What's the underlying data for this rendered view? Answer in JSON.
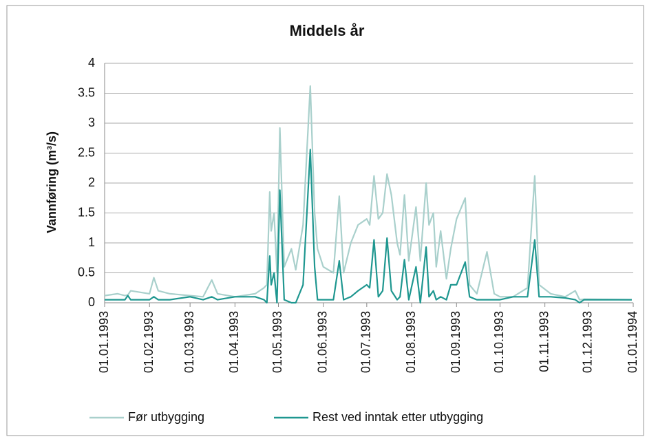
{
  "chart_data": {
    "type": "line",
    "title": "Middels år",
    "y_label": "Vannføring (m³/s)",
    "x": [
      "01.01.1993",
      "10.01.1993",
      "15.01.1993",
      "17.01.1993",
      "19.01.1993",
      "01.02.1993",
      "04.02.1993",
      "07.02.1993",
      "15.02.1993",
      "01.03.1993",
      "10.03.1993",
      "16.03.1993",
      "20.03.1993",
      "01.04.1993",
      "15.04.1993",
      "21.04.1993",
      "23.04.1993",
      "25.04.1993",
      "26.04.1993",
      "28.04.1993",
      "30.04.1993",
      "02.05.1993",
      "05.05.1993",
      "10.05.1993",
      "13.05.1993",
      "18.05.1993",
      "23.05.1993",
      "26.05.1993",
      "28.05.1993",
      "01.06.1993",
      "08.06.1993",
      "12.06.1993",
      "15.06.1993",
      "20.06.1993",
      "25.06.1993",
      "01.07.1993",
      "03.07.1993",
      "06.07.1993",
      "09.07.1993",
      "12.07.1993",
      "15.07.1993",
      "18.07.1993",
      "22.07.1993",
      "24.07.1993",
      "27.07.1993",
      "30.07.1993",
      "04.08.1993",
      "07.08.1993",
      "11.08.1993",
      "13.08.1993",
      "16.08.1993",
      "18.08.1993",
      "21.08.1993",
      "25.08.1993",
      "28.08.1993",
      "01.09.1993",
      "07.09.1993",
      "10.09.1993",
      "15.09.1993",
      "22.09.1993",
      "27.09.1993",
      "01.10.1993",
      "10.10.1993",
      "20.10.1993",
      "25.10.1993",
      "28.10.1993",
      "05.11.1993",
      "15.11.1993",
      "22.11.1993",
      "25.11.1993",
      "28.11.1993",
      "31.12.1993"
    ],
    "series": [
      {
        "name": "Før utbygging",
        "color": "#a9d0cc",
        "values": [
          0.12,
          0.15,
          0.12,
          0.13,
          0.2,
          0.15,
          0.42,
          0.2,
          0.15,
          0.12,
          0.1,
          0.38,
          0.15,
          0.1,
          0.15,
          0.25,
          0.3,
          1.85,
          1.2,
          1.5,
          0.5,
          2.92,
          0.6,
          0.9,
          0.55,
          1.3,
          3.62,
          1.5,
          0.9,
          0.6,
          0.5,
          1.78,
          0.5,
          1.0,
          1.3,
          1.4,
          1.3,
          2.12,
          1.4,
          1.5,
          2.15,
          1.8,
          1.0,
          0.8,
          1.8,
          0.7,
          1.6,
          0.7,
          2.0,
          1.3,
          1.5,
          0.6,
          1.2,
          0.4,
          0.9,
          1.4,
          1.75,
          0.3,
          0.15,
          0.85,
          0.15,
          0.1,
          0.1,
          0.25,
          2.12,
          0.3,
          0.15,
          0.1,
          0.2,
          0.05,
          0.06,
          0.05
        ]
      },
      {
        "name": "Rest ved inntak etter utbygging",
        "color": "#1f9790",
        "values": [
          0.05,
          0.05,
          0.05,
          0.12,
          0.05,
          0.05,
          0.1,
          0.05,
          0.05,
          0.1,
          0.05,
          0.1,
          0.05,
          0.1,
          0.1,
          0.05,
          0.0,
          0.78,
          0.3,
          0.5,
          0.0,
          1.88,
          0.05,
          0.0,
          0.0,
          0.3,
          2.56,
          0.6,
          0.05,
          0.05,
          0.05,
          0.7,
          0.05,
          0.1,
          0.2,
          0.3,
          0.25,
          1.05,
          0.1,
          0.2,
          1.08,
          0.2,
          0.05,
          0.1,
          0.72,
          0.05,
          0.6,
          0.0,
          0.93,
          0.1,
          0.2,
          0.05,
          0.1,
          0.05,
          0.3,
          0.3,
          0.68,
          0.1,
          0.05,
          0.05,
          0.05,
          0.05,
          0.1,
          0.1,
          1.05,
          0.1,
          0.1,
          0.08,
          0.05,
          0.0,
          0.05,
          0.05
        ]
      }
    ],
    "xlim": [
      "01.01.1993",
      "01.01.1994"
    ],
    "xticks": [
      "01.01.1993",
      "01.02.1993",
      "01.03.1993",
      "01.04.1993",
      "01.05.1993",
      "01.06.1993",
      "01.07.1993",
      "01.08.1993",
      "01.09.1993",
      "01.10.1993",
      "01.11.1993",
      "01.12.1993",
      "01.01.1994"
    ],
    "ylim": [
      0,
      4
    ],
    "yticks": [
      0,
      0.5,
      1,
      1.5,
      2,
      2.5,
      3,
      3.5,
      4
    ],
    "grid": true,
    "legend": "bottom"
  }
}
